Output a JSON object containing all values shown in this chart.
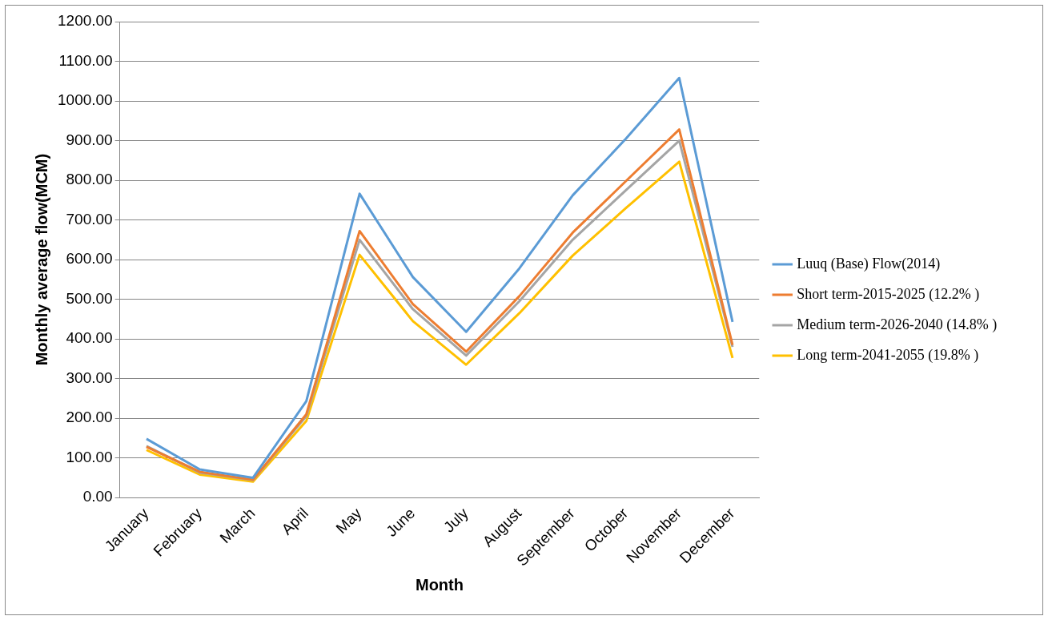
{
  "chart_data": {
    "type": "line",
    "xlabel": "Month",
    "ylabel": "Monthly average flow(MCM)",
    "categories": [
      "January",
      "February",
      "March",
      "April",
      "May",
      "June",
      "July",
      "August",
      "September",
      "October",
      "November",
      "December"
    ],
    "series": [
      {
        "name": "Luuq (Base) Flow(2014)",
        "color": "#5b9bd5",
        "values": [
          148,
          71,
          50,
          243,
          766,
          556,
          418,
          578,
          762,
          905,
          1058,
          443
        ]
      },
      {
        "name": "Short term-2015-2025 (12.2% )",
        "color": "#ed7d31",
        "values": [
          128,
          65,
          45,
          210,
          672,
          488,
          368,
          508,
          668,
          798,
          928,
          385
        ]
      },
      {
        "name": "Medium term-2026-2040 (14.8% )",
        "color": "#a5a5a5",
        "values": [
          130,
          63,
          44,
          205,
          650,
          475,
          358,
          495,
          650,
          775,
          900,
          380
        ]
      },
      {
        "name": "Long term-2041-2055 (19.8% )",
        "color": "#ffc000",
        "values": [
          120,
          58,
          40,
          193,
          612,
          445,
          335,
          465,
          610,
          730,
          847,
          352
        ]
      }
    ],
    "ylim": [
      0,
      1200
    ],
    "yticks": [
      {
        "value": 0,
        "label": "0.00"
      },
      {
        "value": 100,
        "label": "100.00"
      },
      {
        "value": 200,
        "label": "200.00"
      },
      {
        "value": 300,
        "label": "300.00"
      },
      {
        "value": 400,
        "label": "400.00"
      },
      {
        "value": 500,
        "label": "500.00"
      },
      {
        "value": 600,
        "label": "600.00"
      },
      {
        "value": 700,
        "label": "700.00"
      },
      {
        "value": 800,
        "label": "800.00"
      },
      {
        "value": 900,
        "label": "900.00"
      },
      {
        "value": 1000,
        "label": "1000.00"
      },
      {
        "value": 1100,
        "label": "1100.00"
      },
      {
        "value": 1200,
        "label": "1200.00"
      }
    ],
    "grid": "y",
    "legend": "right",
    "marker": "none",
    "line_style": "solid"
  }
}
